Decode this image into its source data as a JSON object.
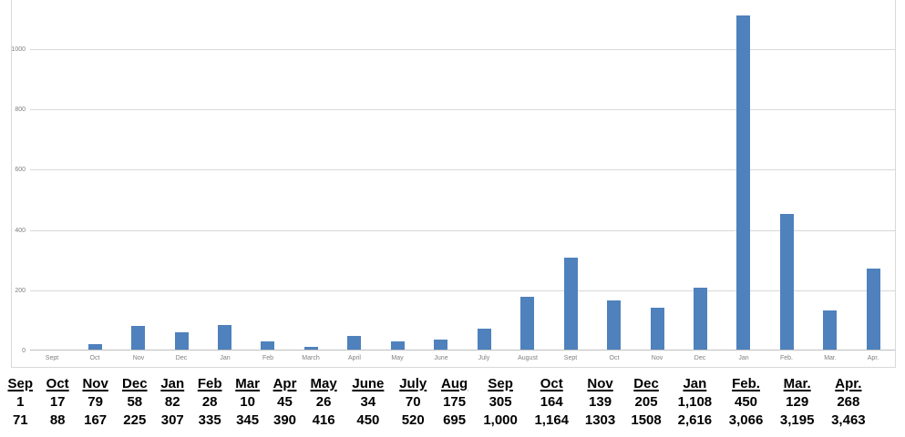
{
  "chart_data": {
    "type": "bar",
    "title": "",
    "xlabel": "",
    "ylabel": "",
    "categories": [
      "Sept",
      "Oct",
      "Nov",
      "Dec",
      "Jan",
      "Feb",
      "March",
      "April",
      "May",
      "June",
      "July",
      "August",
      "Sept",
      "Oct",
      "Nov",
      "Dec",
      "Jan",
      "Feb.",
      "Mar.",
      "Apr."
    ],
    "values": [
      1,
      17,
      79,
      58,
      82,
      28,
      10,
      45,
      26,
      34,
      70,
      175,
      305,
      164,
      139,
      205,
      1108,
      450,
      129,
      268
    ],
    "y_ticks": [
      0,
      200,
      400,
      600,
      800,
      1000
    ],
    "ylim": [
      0,
      1200
    ],
    "grid": true,
    "legend": "none",
    "bar_color": "#4f81bd",
    "gridline_color": "#d9d9d9",
    "axis_color": "#bfbfbf",
    "tick_label_color": "#7f7f7f"
  },
  "table": {
    "headers": [
      "Sep",
      "Oct",
      "Nov",
      "Dec",
      "Jan",
      "Feb",
      "Mar",
      "Apr",
      "May",
      "June",
      "July",
      "Aug",
      "Sep",
      "Oct",
      "Nov",
      "Dec",
      "Jan",
      "Feb.",
      "Mar.",
      "Apr."
    ],
    "monthly": [
      "1",
      "17",
      "79",
      "58",
      "82",
      "28",
      "10",
      "45",
      "26",
      "34",
      "70",
      "175",
      "305",
      "164",
      "139",
      "205",
      "1,108",
      "450",
      "129",
      "268"
    ],
    "cumulative": [
      "71",
      "88",
      "167",
      "225",
      "307",
      "335",
      "345",
      "390",
      "416",
      "450",
      "520",
      "695",
      "1,000",
      "1,164",
      "1303",
      "1508",
      "2,616",
      "3,066",
      "3,195",
      "3,463"
    ]
  }
}
